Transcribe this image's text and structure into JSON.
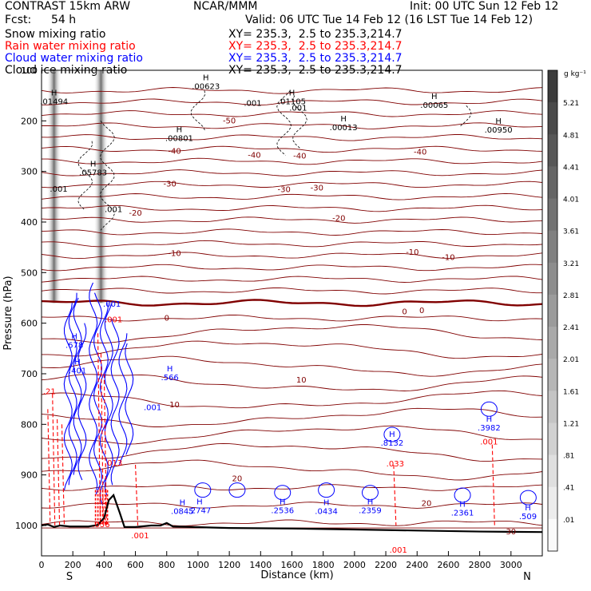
{
  "header": {
    "model": "CONTRAST 15km ARW",
    "center": "NCAR/MMM",
    "init": "Init: 00 UTC Sun 12 Feb 12",
    "fcst_label": "Fcst:",
    "fcst_value": "54 h",
    "valid": "Valid: 06 UTC Tue 14 Feb 12 (16 LST Tue 14 Feb 12)",
    "xy": "XY= 235.3,  2.5 to 235.3,214.7"
  },
  "colors": {
    "snow": "#000000",
    "rain": "#ff0000",
    "cloud_water": "#0000ff",
    "cloud_ice": "#000000",
    "temperature": "#800000",
    "terrain": "#000000"
  },
  "chart_data": {
    "type": "contour cross-section",
    "ylabel": "Pressure (hPa)",
    "xlabel": "Distance (km)",
    "x_start_label": "S",
    "x_end_label": "N",
    "xlim": [
      0,
      3200
    ],
    "ylim": [
      1050,
      100
    ],
    "x_ticks": [
      0,
      200,
      400,
      600,
      800,
      1000,
      1200,
      1400,
      1600,
      1800,
      2000,
      2200,
      2400,
      2600,
      2800,
      3000
    ],
    "y_ticks": [
      100,
      200,
      300,
      400,
      500,
      600,
      700,
      800,
      900,
      1000
    ],
    "series": [
      {
        "name": "Snow mixing ratio",
        "color": "#000000"
      },
      {
        "name": "Rain water mixing ratio",
        "color": "#ff0000"
      },
      {
        "name": "Cloud water mixing ratio",
        "color": "#0000ff"
      },
      {
        "name": "Cloud ice mixing ratio",
        "color": "#000000"
      }
    ],
    "colorbar": {
      "unit": "g kg⁻¹",
      "levels": [
        "5.21",
        "4.81",
        "4.41",
        "4.01",
        "3.61",
        "3.21",
        "2.81",
        "2.41",
        "2.01",
        "1.61",
        "1.21",
        ".81",
        ".41",
        ".01"
      ]
    },
    "shading_columns_km": [
      80,
      380
    ],
    "temperature_isotherms": [
      {
        "label": "-50",
        "x": 1200,
        "p": 200
      },
      {
        "label": "-40",
        "x": 850,
        "p": 260
      },
      {
        "label": "-40",
        "x": 1360,
        "p": 268
      },
      {
        "label": "-40",
        "x": 1650,
        "p": 270
      },
      {
        "label": "-40",
        "x": 2420,
        "p": 262
      },
      {
        "label": "-30",
        "x": 820,
        "p": 325
      },
      {
        "label": "-30",
        "x": 1550,
        "p": 336
      },
      {
        "label": "-30",
        "x": 1760,
        "p": 333
      },
      {
        "label": "-20",
        "x": 600,
        "p": 383
      },
      {
        "label": "-20",
        "x": 1900,
        "p": 393
      },
      {
        "label": "-10",
        "x": 850,
        "p": 462
      },
      {
        "label": "-10",
        "x": 2370,
        "p": 460
      },
      {
        "label": "-10",
        "x": 2600,
        "p": 470
      },
      {
        "label": "0",
        "x": 800,
        "p": 590
      },
      {
        "label": "0",
        "x": 2320,
        "p": 578
      },
      {
        "label": "0",
        "x": 2430,
        "p": 575
      },
      {
        "label": "10",
        "x": 850,
        "p": 762
      },
      {
        "label": "10",
        "x": 1660,
        "p": 713
      },
      {
        "label": "20",
        "x": 1250,
        "p": 908
      },
      {
        "label": "20",
        "x": 2460,
        "p": 957
      },
      {
        "label": "30",
        "x": 3000,
        "p": 1013
      }
    ],
    "extrema_labels": [
      {
        "sym": "H",
        "value": ".01494",
        "x": 80,
        "p": 150,
        "color": "#000000"
      },
      {
        "sym": "H",
        "value": ".00623",
        "x": 1050,
        "p": 120,
        "color": "#000000"
      },
      {
        "sym": "H",
        "value": ".01105",
        "x": 1600,
        "p": 150,
        "color": "#000000"
      },
      {
        "sym": "H",
        "value": ".00065",
        "x": 2510,
        "p": 157,
        "color": "#000000"
      },
      {
        "sym": "H",
        "value": ".00801",
        "x": 880,
        "p": 222,
        "color": "#000000"
      },
      {
        "sym": "H",
        "value": ".00013",
        "x": 1930,
        "p": 201,
        "color": "#000000"
      },
      {
        "sym": "H",
        "value": ".00950",
        "x": 2920,
        "p": 206,
        "color": "#000000"
      },
      {
        "sym": "H",
        "value": ".05783",
        "x": 330,
        "p": 290,
        "color": "#000000"
      },
      {
        "sym": "H",
        "value": ".678",
        "x": 210,
        "p": 631,
        "color": "#0000ff"
      },
      {
        "sym": "H",
        "value": ".401",
        "x": 230,
        "p": 682,
        "color": "#0000ff"
      },
      {
        "sym": "H",
        "value": ".566",
        "x": 820,
        "p": 695,
        "color": "#0000ff"
      },
      {
        "sym": "H",
        "value": ".8132",
        "x": 2240,
        "p": 825,
        "color": "#0000ff"
      },
      {
        "sym": "H",
        "value": ".3982",
        "x": 2860,
        "p": 795,
        "color": "#0000ff"
      },
      {
        "sym": "H",
        "value": ".0845",
        "x": 900,
        "p": 960,
        "color": "#0000ff"
      },
      {
        "sym": "H",
        "value": ".2747",
        "x": 1010,
        "p": 958,
        "color": "#0000ff"
      },
      {
        "sym": "H",
        "value": ".2536",
        "x": 1540,
        "p": 958,
        "color": "#0000ff"
      },
      {
        "sym": "H",
        "value": ".0434",
        "x": 1820,
        "p": 960,
        "color": "#0000ff"
      },
      {
        "sym": "H",
        "value": ".2359",
        "x": 2100,
        "p": 958,
        "color": "#0000ff"
      },
      {
        "sym": "H",
        "value": ".2361",
        "x": 2690,
        "p": 963,
        "color": "#0000ff"
      },
      {
        "sym": "H",
        "value": ".509",
        "x": 3110,
        "p": 970,
        "color": "#0000ff"
      }
    ],
    "point_labels": [
      {
        "value": ".001",
        "x": 110,
        "p": 340,
        "color": "#000000"
      },
      {
        "value": ".001",
        "x": 460,
        "p": 380,
        "color": "#000000"
      },
      {
        "value": ".001",
        "x": 1350,
        "p": 170,
        "color": "#000000"
      },
      {
        "value": ".001",
        "x": 1640,
        "p": 180,
        "color": "#000000"
      },
      {
        "value": ".001",
        "x": 450,
        "p": 567,
        "color": "#0000ff"
      },
      {
        "value": ".001",
        "x": 710,
        "p": 772,
        "color": "#0000ff"
      },
      {
        "value": ".001",
        "x": 460,
        "p": 598,
        "color": "#ff0000"
      },
      {
        "value": ".013",
        "x": 460,
        "p": 882,
        "color": "#ff0000"
      },
      {
        "value": ".056",
        "x": 380,
        "p": 1003,
        "color": "#ff0000"
      },
      {
        "value": ".001",
        "x": 630,
        "p": 1025,
        "color": "#ff0000"
      },
      {
        "value": ".033",
        "x": 2260,
        "p": 883,
        "color": "#ff0000"
      },
      {
        "value": ".001",
        "x": 2280,
        "p": 1076,
        "color": "#ff0000"
      },
      {
        "value": ".001",
        "x": 2860,
        "p": 840,
        "color": "#ff0000"
      },
      {
        "value": ".21",
        "x": 50,
        "p": 740,
        "color": "#ff0000"
      }
    ]
  }
}
